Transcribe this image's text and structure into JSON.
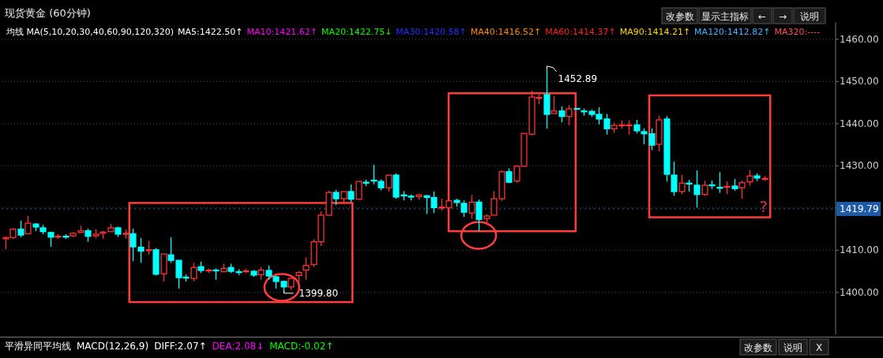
{
  "chart_data": {
    "type": "candlestick",
    "title": "现货黄金 (60分钟)",
    "categories": [
      null,
      null,
      null,
      null,
      null,
      null,
      null,
      null,
      null,
      null,
      null,
      null,
      null,
      null,
      null,
      null,
      null,
      null,
      null,
      null,
      null,
      null,
      null,
      null,
      null,
      null,
      null,
      null,
      null,
      null,
      null,
      null,
      null,
      null,
      null,
      null,
      null,
      null,
      null,
      null,
      null,
      null,
      null,
      null,
      null,
      null,
      null,
      null,
      null,
      null,
      null,
      null,
      null,
      null,
      null,
      null,
      null,
      null,
      null,
      null,
      null,
      null,
      null,
      null,
      null,
      null,
      null,
      null,
      null,
      null,
      null,
      null,
      null,
      null,
      null,
      null,
      null,
      null,
      null,
      null,
      null,
      null,
      null,
      null,
      null,
      null,
      null,
      null,
      null,
      null,
      null,
      null,
      null,
      null,
      null,
      null,
      null,
      null,
      null,
      null,
      null,
      null,
      null,
      null,
      null,
      null,
      null,
      null,
      null,
      null,
      null
    ],
    "ohlc": [
      [
        1412.7,
        1413.2,
        1410.2,
        1413.0
      ],
      [
        1413.0,
        1415.2,
        1412.7,
        1415.0
      ],
      [
        1415.0,
        1417.0,
        1413.1,
        1413.6
      ],
      [
        1413.9,
        1418.1,
        1413.9,
        1416.4
      ],
      [
        1416.2,
        1416.4,
        1414.5,
        1415.5
      ],
      [
        1415.3,
        1416.0,
        1413.8,
        1414.4
      ],
      [
        1414.2,
        1414.4,
        1410.8,
        1413.1
      ],
      [
        1413.1,
        1413.8,
        1412.7,
        1413.3
      ],
      [
        1413.3,
        1413.8,
        1412.7,
        1413.1
      ],
      [
        1413.4,
        1414.3,
        1413.1,
        1414.0
      ],
      [
        1414.2,
        1415.8,
        1414.2,
        1414.6
      ],
      [
        1414.6,
        1415.1,
        1412.0,
        1413.3
      ],
      [
        1413.4,
        1415.0,
        1412.9,
        1413.8
      ],
      [
        1414.0,
        1414.6,
        1412.7,
        1414.3
      ],
      [
        1414.4,
        1416.2,
        1414.4,
        1415.3
      ],
      [
        1415.3,
        1415.6,
        1413.2,
        1413.8
      ],
      [
        1413.8,
        1414.9,
        1412.7,
        1414.0
      ],
      [
        1413.9,
        1415.1,
        1407.4,
        1410.8
      ],
      [
        1410.7,
        1412.9,
        1407.0,
        1409.8
      ],
      [
        1409.9,
        1412.2,
        1409.0,
        1410.1
      ],
      [
        1410.1,
        1410.5,
        1404.0,
        1404.3
      ],
      [
        1404.4,
        1409.1,
        1402.6,
        1409.1
      ],
      [
        1408.9,
        1413.1,
        1407.0,
        1407.6
      ],
      [
        1407.6,
        1407.6,
        1400.9,
        1403.5
      ],
      [
        1403.6,
        1404.3,
        1402.6,
        1403.4
      ],
      [
        1403.3,
        1407.0,
        1402.6,
        1405.9
      ],
      [
        1406.1,
        1407.3,
        1404.6,
        1405.2
      ],
      [
        1405.1,
        1405.6,
        1404.6,
        1405.3
      ],
      [
        1405.3,
        1405.7,
        1403.0,
        1405.2
      ],
      [
        1404.9,
        1406.8,
        1404.9,
        1405.7
      ],
      [
        1405.9,
        1406.8,
        1404.6,
        1405.0
      ],
      [
        1404.9,
        1405.5,
        1404.1,
        1404.8
      ],
      [
        1404.9,
        1405.6,
        1404.6,
        1405.1
      ],
      [
        1405.0,
        1405.3,
        1403.7,
        1404.1
      ],
      [
        1404.2,
        1406.0,
        1403.0,
        1405.3
      ],
      [
        1405.2,
        1406.4,
        1403.0,
        1403.9
      ],
      [
        1403.7,
        1403.9,
        1400.9,
        1402.6
      ],
      [
        1402.6,
        1402.8,
        1399.8,
        1401.3
      ],
      [
        1401.3,
        1403.5,
        1400.6,
        1403.3
      ],
      [
        1404.0,
        1405.1,
        1402.0,
        1404.7
      ],
      [
        1405.3,
        1408.3,
        1403.0,
        1406.4
      ],
      [
        1406.6,
        1412.6,
        1406.0,
        1412.0
      ],
      [
        1412.0,
        1419.2,
        1411.0,
        1418.3
      ],
      [
        1418.3,
        1424.1,
        1418.3,
        1423.7
      ],
      [
        1423.7,
        1424.3,
        1420.7,
        1422.2
      ],
      [
        1422.2,
        1423.9,
        1421.1,
        1423.9
      ],
      [
        1423.9,
        1425.6,
        1421.4,
        1422.1
      ],
      [
        1422.1,
        1426.3,
        1422.1,
        1426.3
      ],
      [
        1426.1,
        1426.7,
        1425.2,
        1425.9
      ],
      [
        1426.6,
        1430.2,
        1425.6,
        1426.4
      ],
      [
        1426.3,
        1426.8,
        1424.2,
        1424.8
      ],
      [
        1424.8,
        1427.8,
        1423.9,
        1427.8
      ],
      [
        1427.8,
        1428.2,
        1422.2,
        1422.6
      ],
      [
        1423.1,
        1424.0,
        1421.8,
        1422.9
      ],
      [
        1422.8,
        1423.2,
        1421.8,
        1422.6
      ],
      [
        1422.7,
        1423.4,
        1422.0,
        1423.1
      ],
      [
        1422.9,
        1423.1,
        1418.6,
        1422.5
      ],
      [
        1422.5,
        1423.9,
        1418.8,
        1420.1
      ],
      [
        1420.0,
        1422.2,
        1419.4,
        1420.2
      ],
      [
        1420.1,
        1421.9,
        1420.0,
        1421.7
      ],
      [
        1421.8,
        1422.2,
        1420.3,
        1421.3
      ],
      [
        1421.1,
        1421.8,
        1417.9,
        1419.0
      ],
      [
        1418.8,
        1423.1,
        1417.4,
        1421.4
      ],
      [
        1421.4,
        1422.0,
        1414.5,
        1417.3
      ],
      [
        1417.5,
        1418.5,
        1415.9,
        1418.1
      ],
      [
        1418.3,
        1424.0,
        1418.3,
        1422.2
      ],
      [
        1422.2,
        1428.9,
        1421.7,
        1428.6
      ],
      [
        1428.6,
        1429.4,
        1425.9,
        1426.1
      ],
      [
        1426.4,
        1430.2,
        1426.0,
        1429.9
      ],
      [
        1429.9,
        1437.7,
        1429.9,
        1437.7
      ],
      [
        1437.5,
        1447.8,
        1437.2,
        1446.3
      ],
      [
        1446.0,
        1446.9,
        1444.6,
        1446.2
      ],
      [
        1446.9,
        1452.89,
        1438.8,
        1442.2
      ],
      [
        1442.4,
        1446.6,
        1442.4,
        1443.0
      ],
      [
        1443.0,
        1444.1,
        1440.3,
        1441.7
      ],
      [
        1441.7,
        1444.4,
        1439.6,
        1443.5
      ],
      [
        1443.6,
        1443.6,
        1443.4,
        1443.4
      ],
      [
        1443.0,
        1443.6,
        1441.9,
        1442.8
      ],
      [
        1442.9,
        1443.3,
        1441.6,
        1442.2
      ],
      [
        1442.2,
        1443.9,
        1439.8,
        1441.1
      ],
      [
        1441.1,
        1442.3,
        1437.4,
        1438.8
      ],
      [
        1438.8,
        1440.2,
        1437.8,
        1439.6
      ],
      [
        1439.5,
        1440.8,
        1438.8,
        1439.7
      ],
      [
        1439.6,
        1440.8,
        1437.4,
        1439.7
      ],
      [
        1439.7,
        1440.9,
        1437.7,
        1438.3
      ],
      [
        1438.1,
        1438.9,
        1435.1,
        1437.6
      ],
      [
        1437.6,
        1438.9,
        1433.7,
        1434.9
      ],
      [
        1435.1,
        1441.8,
        1433.4,
        1440.9
      ],
      [
        1441.1,
        1441.8,
        1426.3,
        1428.0
      ],
      [
        1427.8,
        1431.0,
        1422.9,
        1423.9
      ],
      [
        1423.9,
        1427.9,
        1423.3,
        1425.9
      ],
      [
        1425.9,
        1426.7,
        1423.9,
        1425.7
      ],
      [
        1425.4,
        1428.9,
        1420.1,
        1423.2
      ],
      [
        1423.2,
        1426.5,
        1422.9,
        1425.4
      ],
      [
        1425.5,
        1426.5,
        1424.5,
        1425.3
      ],
      [
        1424.9,
        1428.5,
        1423.6,
        1424.7
      ],
      [
        1424.9,
        1426.3,
        1423.3,
        1425.1
      ],
      [
        1425.2,
        1426.9,
        1424.1,
        1424.6
      ],
      [
        1424.8,
        1426.5,
        1422.2,
        1426.0
      ],
      [
        1426.2,
        1429.0,
        1425.3,
        1427.6
      ],
      [
        1427.6,
        1428.2,
        1426.4,
        1427.1
      ],
      [
        1426.8,
        1427.6,
        1426.4,
        1427.0
      ],
      null,
      null,
      null,
      null,
      null,
      null,
      null,
      null,
      null
    ],
    "colors": [
      "#ff3232",
      "#ff3232",
      "#00ffff",
      "#ff3232",
      "#00ffff",
      "#00ffff",
      "#00ffff",
      "#ff3232",
      "#00ffff",
      "#ff3232",
      "#ff3232",
      "#00ffff",
      "#ff3232",
      "#ff3232",
      "#ff3232",
      "#00ffff",
      "#ff3232",
      "#00ffff",
      "#00ffff",
      "#ff3232",
      "#00ffff",
      "#ff3232",
      "#00ffff",
      "#00ffff",
      "#00ffff",
      "#ff3232",
      "#00ffff",
      "#ff3232",
      "#00ffff",
      "#ff3232",
      "#00ffff",
      "#00ffff",
      "#ff3232",
      "#00ffff",
      "#ff3232",
      "#00ffff",
      "#00ffff",
      "#00ffff",
      "#ff3232",
      "#ff3232",
      "#ff3232",
      "#ff3232",
      "#ff3232",
      "#ff3232",
      "#00ffff",
      "#ff3232",
      "#00ffff",
      "#ff3232",
      "#00ffff",
      "#00ffff",
      "#00ffff",
      "#ff3232",
      "#00ffff",
      "#00ffff",
      "#00ffff",
      "#ff3232",
      "#00ffff",
      "#00ffff",
      "#ff3232",
      "#ff3232",
      "#00ffff",
      "#00ffff",
      "#ff3232",
      "#00ffff",
      "#ff3232",
      "#ff3232",
      "#ff3232",
      "#00ffff",
      "#ff3232",
      "#ff3232",
      "#ff3232",
      "#ff3232",
      "#00ffff",
      "#ff3232",
      "#00ffff",
      "#ff3232",
      "#00ffff",
      "#00ffff",
      "#00ffff",
      "#00ffff",
      "#00ffff",
      "#ff3232",
      "#ff3232",
      "#ff3232",
      "#00ffff",
      "#00ffff",
      "#00ffff",
      "#ff3232",
      "#00ffff",
      "#00ffff",
      "#ff3232",
      "#00ffff",
      "#00ffff",
      "#ff3232",
      "#00ffff",
      "#00ffff",
      "#ff3232",
      "#00ffff",
      "#ff3232",
      "#ff3232",
      "#00ffff",
      "#ff3232",
      null,
      null,
      null,
      null,
      null,
      null,
      null,
      null,
      null
    ],
    "ylim": [
      1390,
      1464
    ],
    "yticks": [
      {
        "value": 1400,
        "label": "1400.00"
      },
      {
        "value": 1410,
        "label": "1410.00"
      },
      {
        "value": 1420,
        "label": null
      },
      {
        "value": 1430,
        "label": "1430.00"
      },
      {
        "value": 1440,
        "label": "1440.00"
      },
      {
        "value": 1450,
        "label": "1450.00"
      },
      {
        "value": 1460,
        "label": "1460.00"
      }
    ],
    "grid": "y",
    "tick_labels": "y",
    "ref_lines": [
      {
        "axis": "y",
        "value": 1419.79,
        "label": "1419.79",
        "color": "#1e5aa8"
      }
    ],
    "annotations": [
      "改参数",
      "显示主指标",
      "←",
      "→",
      "说明",
      "均线 MA(5,10,20,30,40,60,90,120,320)",
      "MA5:1422.50↑",
      "MA10:1421.62↑",
      "MA20:1422.75↓",
      "MA30:1420.58↑",
      "MA40:1416.52↑",
      "MA60:1414.37↑",
      "MA90:1414.21↑",
      "MA120:1412.82↑",
      "MA320:----",
      "平滑异同平均线",
      "MACD(12,26,9)",
      "DIFF:2.07↑",
      "DEA:2.08↓",
      "MACD:-0.02↑",
      "改参数",
      "说明",
      "X",
      "1452.89",
      "1399.80",
      "?"
    ]
  }
}
